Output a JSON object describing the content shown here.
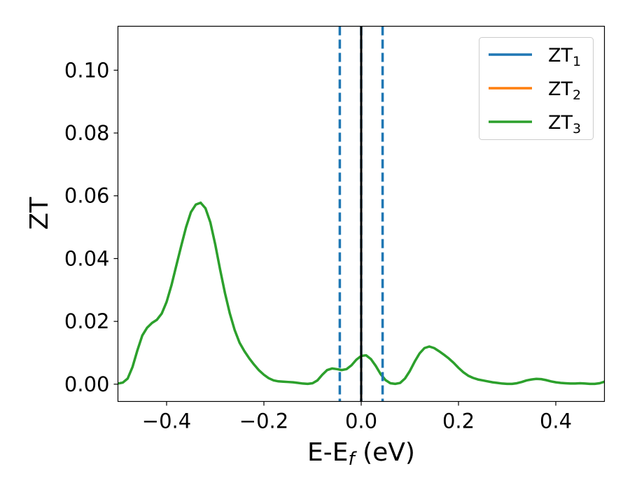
{
  "chart_data": {
    "type": "line",
    "xlabel": "E-E",
    "xlabel_sub": "f",
    "xlabel_unit": " (eV)",
    "ylabel": "ZT",
    "xlim": [
      -0.5,
      0.5
    ],
    "ylim": [
      -0.0055,
      0.114
    ],
    "xticks": [
      -0.4,
      -0.2,
      0.0,
      0.2,
      0.4
    ],
    "xtick_labels": [
      "−0.4",
      "−0.2",
      "0.0",
      "0.2",
      "0.4"
    ],
    "yticks": [
      0.0,
      0.02,
      0.04,
      0.06,
      0.08,
      0.1
    ],
    "ytick_labels": [
      "0.00",
      "0.02",
      "0.04",
      "0.06",
      "0.08",
      "0.10"
    ],
    "grid": false,
    "legend_position": "top-right",
    "x": [
      -0.5,
      -0.49,
      -0.48,
      -0.47,
      -0.46,
      -0.45,
      -0.44,
      -0.43,
      -0.42,
      -0.41,
      -0.4,
      -0.39,
      -0.38,
      -0.37,
      -0.36,
      -0.35,
      -0.34,
      -0.33,
      -0.32,
      -0.31,
      -0.3,
      -0.29,
      -0.28,
      -0.27,
      -0.26,
      -0.25,
      -0.24,
      -0.23,
      -0.22,
      -0.21,
      -0.2,
      -0.19,
      -0.18,
      -0.17,
      -0.16,
      -0.15,
      -0.14,
      -0.13,
      -0.12,
      -0.11,
      -0.1,
      -0.09,
      -0.08,
      -0.07,
      -0.06,
      -0.05,
      -0.04,
      -0.03,
      -0.02,
      -0.01,
      0.0,
      0.01,
      0.02,
      0.03,
      0.04,
      0.05,
      0.06,
      0.07,
      0.08,
      0.09,
      0.1,
      0.11,
      0.12,
      0.13,
      0.14,
      0.15,
      0.16,
      0.17,
      0.18,
      0.19,
      0.2,
      0.21,
      0.22,
      0.23,
      0.24,
      0.25,
      0.26,
      0.27,
      0.28,
      0.29,
      0.3,
      0.31,
      0.32,
      0.33,
      0.34,
      0.35,
      0.36,
      0.37,
      0.38,
      0.39,
      0.4,
      0.41,
      0.42,
      0.43,
      0.44,
      0.45,
      0.46,
      0.47,
      0.48,
      0.49,
      0.5
    ],
    "series": [
      {
        "name": "ZT",
        "name_sub": "1",
        "color": "#1f77b4",
        "values": null
      },
      {
        "name": "ZT",
        "name_sub": "2",
        "color": "#ff7f0e",
        "values": null
      },
      {
        "name": "ZT",
        "name_sub": "3",
        "color": "#2ca02c",
        "values": [
          0.0002,
          0.0005,
          0.0018,
          0.0055,
          0.0108,
          0.0155,
          0.018,
          0.0195,
          0.0205,
          0.0225,
          0.0262,
          0.0315,
          0.0378,
          0.044,
          0.05,
          0.0548,
          0.0572,
          0.0578,
          0.056,
          0.0515,
          0.0445,
          0.0365,
          0.029,
          0.0225,
          0.0172,
          0.0132,
          0.0105,
          0.0082,
          0.0062,
          0.0044,
          0.003,
          0.0019,
          0.0012,
          0.0009,
          0.0008,
          0.0007,
          0.0006,
          0.0004,
          0.0002,
          0.0001,
          0.0003,
          0.0012,
          0.003,
          0.0045,
          0.005,
          0.0048,
          0.0045,
          0.0048,
          0.006,
          0.0078,
          0.009,
          0.0092,
          0.008,
          0.0058,
          0.0032,
          0.0013,
          0.0003,
          0.0001,
          0.0004,
          0.0018,
          0.0042,
          0.0072,
          0.0098,
          0.0115,
          0.012,
          0.0115,
          0.0105,
          0.0094,
          0.0082,
          0.0068,
          0.0052,
          0.0038,
          0.0027,
          0.002,
          0.0015,
          0.0012,
          0.0009,
          0.0006,
          0.0004,
          0.0002,
          0.0001,
          0.0001,
          0.0003,
          0.0007,
          0.0012,
          0.0015,
          0.0017,
          0.0016,
          0.0013,
          0.0009,
          0.0006,
          0.0004,
          0.0003,
          0.0002,
          0.0002,
          0.0003,
          0.0002,
          0.0001,
          0.0001,
          0.0003,
          0.0008
        ]
      }
    ],
    "vertical_lines": [
      {
        "x": -0.044,
        "style": "dashed",
        "color": "#1f77b4"
      },
      {
        "x": 0.0,
        "style": "dashed",
        "color": "#1f77b4"
      },
      {
        "x": 0.044,
        "style": "dashed",
        "color": "#1f77b4"
      },
      {
        "x": 0.0,
        "style": "solid",
        "color": "#000000"
      }
    ]
  }
}
